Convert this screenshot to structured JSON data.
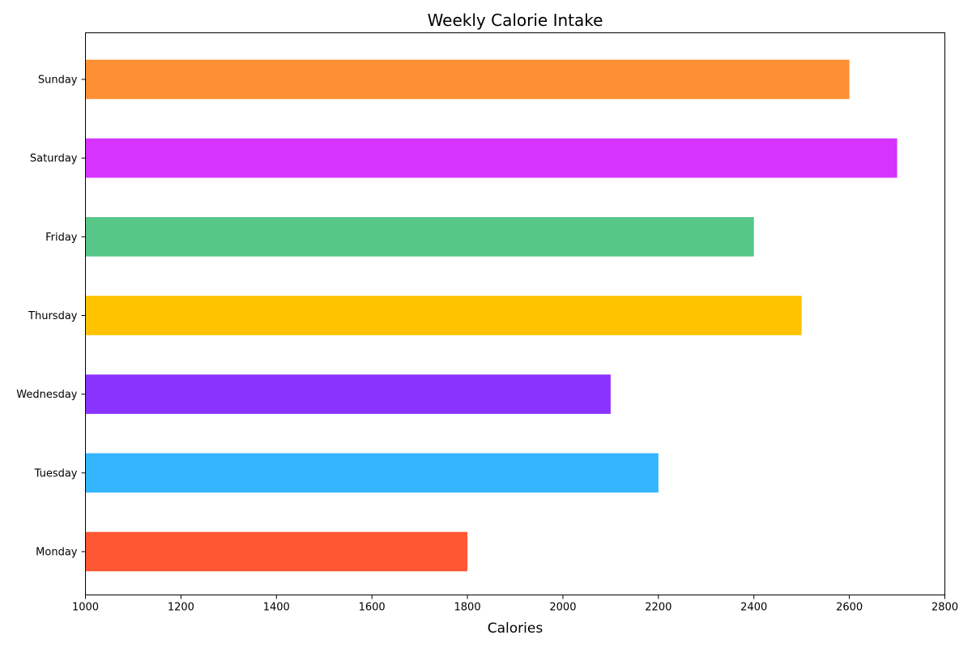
{
  "chart_data": {
    "type": "bar",
    "orientation": "horizontal",
    "title": "Weekly Calorie Intake",
    "xlabel": "Calories",
    "ylabel": "",
    "xlim": [
      1000,
      2800
    ],
    "xticks": [
      "1000",
      "1200",
      "1400",
      "1600",
      "1800",
      "2000",
      "2200",
      "2400",
      "2600",
      "2800"
    ],
    "grid": false,
    "legend": "none",
    "categories": [
      "Monday",
      "Tuesday",
      "Wednesday",
      "Thursday",
      "Friday",
      "Saturday",
      "Sunday"
    ],
    "values": [
      1800,
      2200,
      2100,
      2500,
      2400,
      2700,
      2600
    ],
    "colors": [
      "#FF5733",
      "#33B5FF",
      "#8A33FF",
      "#FFC300",
      "#56C787",
      "#D633FF",
      "#FF8F33"
    ]
  }
}
